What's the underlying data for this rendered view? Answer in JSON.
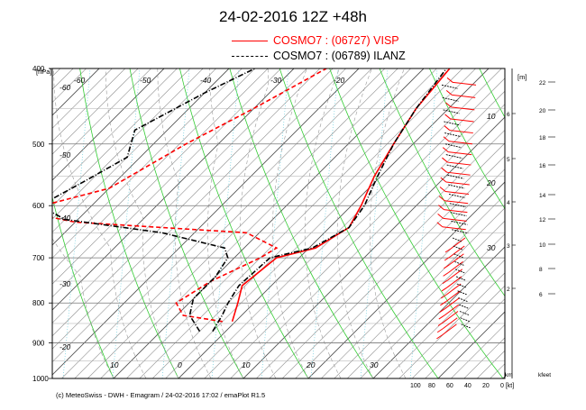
{
  "title": "24-02-2016  12Z +48h",
  "legend": [
    {
      "label": "COSMO7 : (06727)  VISP",
      "color": "#ff0000",
      "style": "solid"
    },
    {
      "label": "COSMO7 : (06789)  ILANZ",
      "color": "#000000",
      "style": "dash-dot"
    }
  ],
  "footer": "(c) MeteoSwiss - DWH - Emagram / 24-02-2016  17:02 / emaPlot R1.5",
  "chart_data": {
    "type": "line",
    "title": "24-02-2016  12Z +48h",
    "ylabel": "[hPa]",
    "y_axis": "pressure (log scale, decreasing upward)",
    "ylim": [
      1000,
      400
    ],
    "xlim": [
      -20,
      45
    ],
    "pressure_ticks": [
      400,
      500,
      600,
      700,
      800,
      900,
      1000
    ],
    "temperature_labels_bottom": [
      10,
      0,
      10,
      20,
      30
    ],
    "temperature_labels_top": [
      -60,
      -50,
      -40,
      -30,
      -20
    ],
    "isotherm_labels_left": [
      -60,
      -50,
      -40,
      -30,
      -20
    ],
    "inner_labels": [
      "10",
      "20",
      "30"
    ],
    "height_axis_label": "[m]",
    "height_ticks_km": [
      2,
      3,
      4,
      5,
      6
    ],
    "height_ticks_kfeet": [
      6,
      8,
      10,
      12,
      14,
      16,
      18,
      20,
      22
    ],
    "km_label": "km",
    "kfeet_label": "kfeet",
    "wind_axis_ticks": [
      "100",
      "80",
      "60",
      "40",
      "20",
      "0 [kt]"
    ],
    "grid": true,
    "series": [
      {
        "name": "VISP temperature",
        "color": "#ff0000",
        "points": [
          [
            -0.5,
            845
          ],
          [
            -2.5,
            800
          ],
          [
            -4.5,
            760
          ],
          [
            -3.5,
            700
          ],
          [
            1.0,
            680
          ],
          [
            3.0,
            640
          ],
          [
            1.5,
            600
          ],
          [
            -1,
            550
          ],
          [
            -3,
            500
          ],
          [
            -5,
            450
          ],
          [
            -6,
            400
          ]
        ]
      },
      {
        "name": "VISP dewpoint",
        "color": "#ff0000",
        "dash": true,
        "points": [
          [
            -2,
            845
          ],
          [
            -9,
            830
          ],
          [
            -12,
            800
          ],
          [
            -10,
            750
          ],
          [
            -6,
            700
          ],
          [
            -5,
            680
          ],
          [
            -12,
            650
          ],
          [
            -40,
            630
          ],
          [
            -50,
            610
          ],
          [
            -40,
            570
          ],
          [
            -35,
            500
          ],
          [
            -30,
            450
          ],
          [
            -25,
            400
          ]
        ]
      },
      {
        "name": "ILANZ temperature",
        "color": "#000000",
        "dash": true,
        "points": [
          [
            -2,
            870
          ],
          [
            -3,
            830
          ],
          [
            -4,
            800
          ],
          [
            -5,
            760
          ],
          [
            -4.5,
            700
          ],
          [
            0.5,
            680
          ],
          [
            3,
            640
          ],
          [
            2,
            600
          ],
          [
            -0.5,
            550
          ],
          [
            -3,
            500
          ],
          [
            -5,
            450
          ],
          [
            -6.5,
            400
          ]
        ]
      },
      {
        "name": "ILANZ dewpoint",
        "color": "#000000",
        "dash": true,
        "points": [
          [
            -4,
            870
          ],
          [
            -8,
            830
          ],
          [
            -10,
            790
          ],
          [
            -10,
            740
          ],
          [
            -11,
            700
          ],
          [
            -13,
            680
          ],
          [
            -25,
            650
          ],
          [
            -42,
            625
          ],
          [
            -48,
            600
          ],
          [
            -45,
            560
          ],
          [
            -42,
            520
          ],
          [
            -45,
            480
          ],
          [
            -40,
            430
          ],
          [
            -36,
            400
          ]
        ]
      }
    ]
  }
}
